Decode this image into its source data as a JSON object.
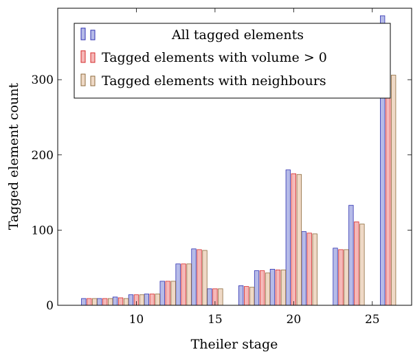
{
  "chart_data": {
    "type": "bar",
    "xlabel": "Theiler stage",
    "ylabel": "Tagged element count",
    "xlim": [
      5,
      27.5
    ],
    "ylim": [
      0,
      395
    ],
    "xticks": [
      10,
      15,
      20,
      25
    ],
    "yticks": [
      0,
      100,
      200,
      300
    ],
    "legend_position": "top-left",
    "series": [
      {
        "name": "All tagged elements",
        "fill": "#b6bbe8",
        "stroke": "#2d2fb0",
        "x": [
          7,
          8,
          9,
          10,
          11,
          12,
          13,
          14,
          15,
          17,
          18,
          19,
          20,
          21,
          23,
          24,
          26
        ],
        "values": [
          9,
          9,
          11,
          14,
          15,
          32,
          55,
          75,
          22,
          26,
          46,
          48,
          180,
          98,
          76,
          133,
          385
        ]
      },
      {
        "name": "Tagged elements with volume > 0",
        "fill": "#f5b8b8",
        "stroke": "#d42a2a",
        "x": [
          7,
          8,
          9,
          10,
          11,
          12,
          13,
          14,
          15,
          17,
          18,
          19,
          20,
          21,
          23,
          24,
          26
        ],
        "values": [
          9,
          9,
          10,
          14,
          15,
          32,
          55,
          74,
          22,
          25,
          46,
          47,
          175,
          96,
          74,
          111,
          360
        ]
      },
      {
        "name": "Tagged elements with neighbours",
        "fill": "#efd9c6",
        "stroke": "#8c6a3c",
        "x": [
          7,
          8,
          9,
          10,
          11,
          12,
          13,
          14,
          15,
          17,
          18,
          19,
          20,
          21,
          23,
          24,
          26
        ],
        "values": [
          9,
          9,
          9,
          14,
          15,
          32,
          55,
          73,
          22,
          24,
          43,
          47,
          174,
          95,
          74,
          108,
          306
        ]
      }
    ]
  }
}
